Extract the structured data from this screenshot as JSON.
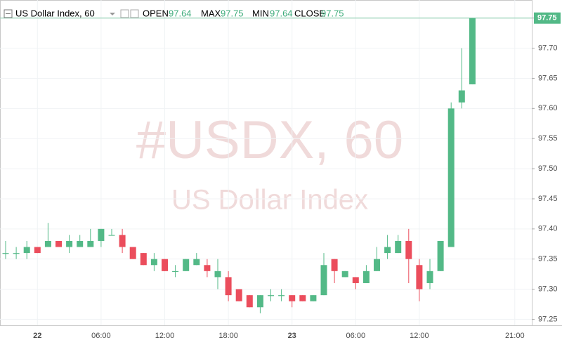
{
  "chart_data": {
    "type": "candlestick",
    "title": "US Dollar Index, 60",
    "watermark": "#USDX, 60",
    "watermark_subtitle": "US Dollar Index",
    "legend_labels": {
      "open": "OPEN",
      "high": "MAX",
      "low": "MIN",
      "close": "CLOSE"
    },
    "categories": [
      null,
      null,
      null,
      "22",
      null,
      null,
      null,
      null,
      null,
      "06:00",
      null,
      null,
      null,
      null,
      null,
      "12:00",
      null,
      null,
      null,
      null,
      null,
      "18:00",
      null,
      null,
      null,
      null,
      null,
      "23",
      null,
      null,
      null,
      null,
      null,
      "06:00",
      null,
      null,
      null,
      null,
      null,
      "12:00",
      null,
      null,
      null,
      null,
      null,
      null,
      null,
      null,
      "21:00"
    ],
    "open": [
      97.36,
      97.36,
      97.36,
      97.37,
      97.37,
      97.38,
      97.37,
      97.37,
      97.37,
      97.38,
      97.39,
      97.39,
      97.37,
      97.36,
      97.34,
      97.35,
      97.33,
      97.33,
      97.34,
      97.34,
      97.32,
      97.32,
      97.3,
      97.29,
      97.27,
      97.29,
      97.29,
      97.29,
      97.29,
      97.28,
      97.29,
      97.35,
      97.32,
      97.32,
      97.31,
      97.33,
      97.36,
      97.36,
      97.38,
      97.34,
      97.31,
      97.33,
      97.37,
      97.61,
      97.64,
      null,
      null,
      null,
      null
    ],
    "high": [
      97.38,
      97.37,
      97.38,
      97.37,
      97.41,
      97.38,
      97.39,
      97.39,
      97.4,
      97.4,
      97.4,
      97.4,
      97.37,
      97.36,
      97.36,
      97.35,
      97.34,
      97.35,
      97.36,
      97.35,
      97.35,
      97.33,
      97.3,
      97.29,
      97.29,
      97.3,
      97.3,
      97.29,
      97.29,
      97.29,
      97.36,
      97.35,
      97.33,
      97.32,
      97.34,
      97.37,
      97.39,
      97.39,
      97.4,
      97.35,
      97.35,
      97.38,
      97.61,
      97.7,
      97.75,
      null,
      null,
      null,
      null
    ],
    "low": [
      97.35,
      97.35,
      97.35,
      97.36,
      97.37,
      97.37,
      97.36,
      97.37,
      97.37,
      97.37,
      97.39,
      97.36,
      97.35,
      97.34,
      97.33,
      97.33,
      97.32,
      97.33,
      97.34,
      97.32,
      97.3,
      97.28,
      97.28,
      97.27,
      97.26,
      97.28,
      97.28,
      97.27,
      97.28,
      97.28,
      97.29,
      97.31,
      97.32,
      97.3,
      97.31,
      97.33,
      97.35,
      97.36,
      97.31,
      97.28,
      97.3,
      97.33,
      97.37,
      97.6,
      97.64,
      null,
      null,
      null,
      null
    ],
    "close": [
      97.36,
      97.36,
      97.37,
      97.36,
      97.38,
      97.37,
      97.38,
      97.38,
      97.38,
      97.4,
      97.39,
      97.37,
      97.35,
      97.34,
      97.35,
      97.33,
      97.33,
      97.35,
      97.35,
      97.33,
      97.33,
      97.29,
      97.28,
      97.27,
      97.29,
      97.29,
      97.29,
      97.28,
      97.28,
      97.29,
      97.34,
      97.33,
      97.33,
      97.31,
      97.33,
      97.35,
      97.37,
      97.38,
      97.35,
      97.3,
      97.33,
      97.38,
      97.6,
      97.63,
      97.75,
      null,
      null,
      null,
      null
    ],
    "up_color": "#53b987",
    "down_color": "#eb4d5c",
    "ylim": [
      97.24,
      97.78
    ],
    "yticks": [
      97.25,
      {
        "value": 97.3,
        "label": "97.30"
      },
      97.35,
      {
        "value": 97.4,
        "label": "97.40"
      },
      97.45,
      {
        "value": 97.5,
        "label": "97.50"
      },
      97.55,
      {
        "value": 97.6,
        "label": "97.60"
      },
      97.65,
      {
        "value": 97.7,
        "label": "97.70"
      },
      97.75
    ],
    "grid": true
  }
}
